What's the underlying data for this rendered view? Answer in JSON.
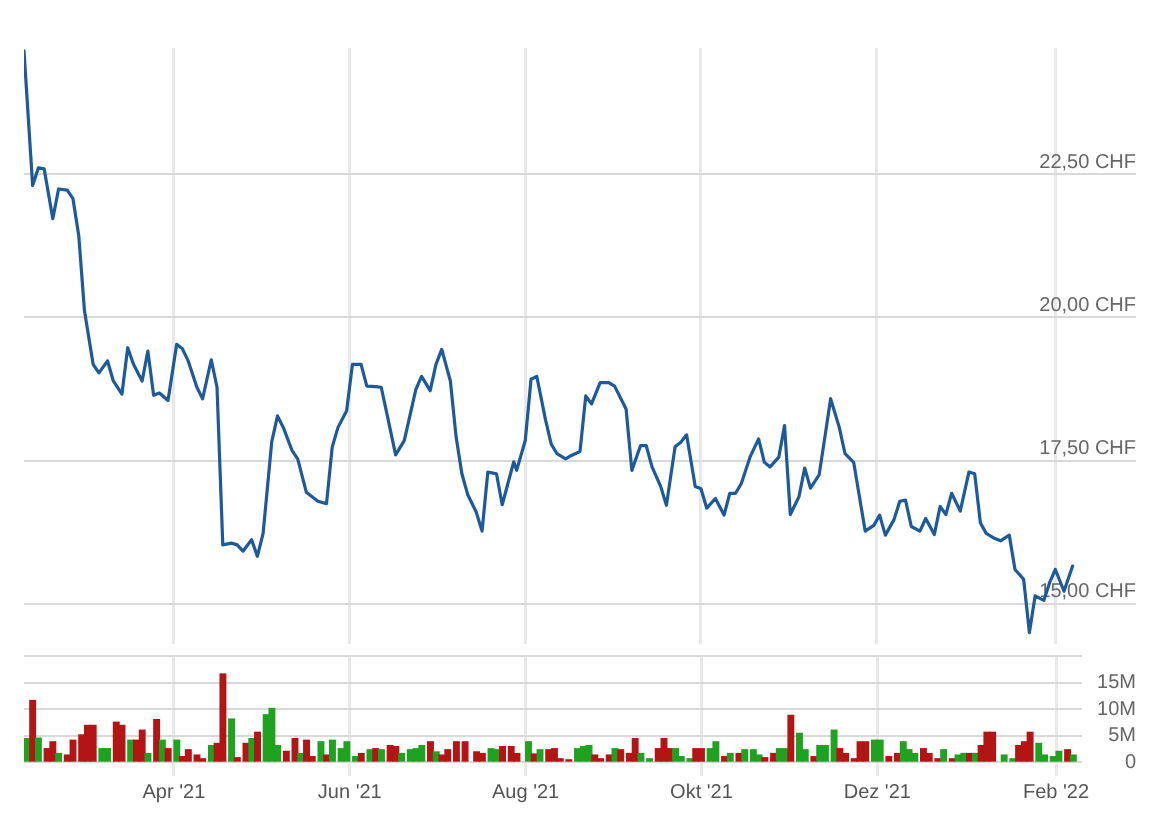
{
  "chart_data": [
    {
      "type": "line",
      "color": "#1d5a9c",
      "marker": "none",
      "grid": true,
      "tick_labels": "y",
      "xlim": [
        "2021-02-08",
        "2022-03-01"
      ],
      "xticks": [
        {
          "value": "2021-04-01",
          "label": "Apr '21"
        },
        {
          "value": "2021-06-01",
          "label": "Jun '21"
        },
        {
          "value": "2021-08-01",
          "label": "Aug '21"
        },
        {
          "value": "2021-10-01",
          "label": "Okt '21"
        },
        {
          "value": "2021-12-01",
          "label": "Dez '21"
        },
        {
          "value": "2022-02-01",
          "label": "Feb '22"
        }
      ],
      "ylim": [
        14.3,
        24.7
      ],
      "yticks": [
        {
          "value": 15,
          "label": "15,00 CHF"
        },
        {
          "value": 17.5,
          "label": "17,50 CHF"
        },
        {
          "value": 20,
          "label": "20,00 CHF"
        },
        {
          "value": 22.5,
          "label": "22,50 CHF"
        }
      ],
      "x": [
        "2021-02-08",
        "2021-02-11",
        "2021-02-13",
        "2021-02-15",
        "2021-02-18",
        "2021-02-20",
        "2021-02-23",
        "2021-02-25",
        "2021-02-27",
        "2021-03-01",
        "2021-03-04",
        "2021-03-06",
        "2021-03-09",
        "2021-03-11",
        "2021-03-14",
        "2021-03-16",
        "2021-03-18",
        "2021-03-21",
        "2021-03-23",
        "2021-03-25",
        "2021-03-27",
        "2021-03-30",
        "2021-04-02",
        "2021-04-04",
        "2021-04-06",
        "2021-04-09",
        "2021-04-11",
        "2021-04-14",
        "2021-04-16",
        "2021-04-18",
        "2021-04-21",
        "2021-04-23",
        "2021-04-25",
        "2021-04-28",
        "2021-04-30",
        "2021-05-02",
        "2021-05-05",
        "2021-05-07",
        "2021-05-09",
        "2021-05-12",
        "2021-05-14",
        "2021-05-17",
        "2021-05-19",
        "2021-05-21",
        "2021-05-24",
        "2021-05-26",
        "2021-05-28",
        "2021-05-31",
        "2021-06-02",
        "2021-06-05",
        "2021-06-07",
        "2021-06-10",
        "2021-06-12",
        "2021-06-14",
        "2021-06-17",
        "2021-06-20",
        "2021-06-24",
        "2021-06-26",
        "2021-06-29",
        "2021-07-01",
        "2021-07-03",
        "2021-07-06",
        "2021-07-08",
        "2021-07-10",
        "2021-07-12",
        "2021-07-15",
        "2021-07-17",
        "2021-07-19",
        "2021-07-22",
        "2021-07-24",
        "2021-07-28",
        "2021-07-29",
        "2021-08-01",
        "2021-08-03",
        "2021-08-05",
        "2021-08-08",
        "2021-08-10",
        "2021-08-12",
        "2021-08-15",
        "2021-08-17",
        "2021-08-20",
        "2021-08-22",
        "2021-08-24",
        "2021-08-27",
        "2021-08-30",
        "2021-09-01",
        "2021-09-05",
        "2021-09-07",
        "2021-09-10",
        "2021-09-12",
        "2021-09-14",
        "2021-09-17",
        "2021-09-19",
        "2021-09-22",
        "2021-09-24",
        "2021-09-26",
        "2021-09-29",
        "2021-10-01",
        "2021-10-03",
        "2021-10-06",
        "2021-10-09",
        "2021-10-11",
        "2021-10-13",
        "2021-10-15",
        "2021-10-18",
        "2021-10-21",
        "2021-10-23",
        "2021-10-25",
        "2021-10-28",
        "2021-10-30",
        "2021-11-01",
        "2021-11-04",
        "2021-11-06",
        "2021-11-08",
        "2021-11-11",
        "2021-11-13",
        "2021-11-15",
        "2021-11-18",
        "2021-11-20",
        "2021-11-23",
        "2021-11-25",
        "2021-11-27",
        "2021-11-30",
        "2021-12-02",
        "2021-12-04",
        "2021-12-07",
        "2021-12-09",
        "2021-12-11",
        "2021-12-13",
        "2021-12-16",
        "2021-12-18",
        "2021-12-21",
        "2021-12-23",
        "2021-12-25",
        "2021-12-27",
        "2021-12-30",
        "2022-01-02",
        "2022-01-04",
        "2022-01-06",
        "2022-01-08",
        "2022-01-11",
        "2022-01-13",
        "2022-01-16",
        "2022-01-18",
        "2022-01-21",
        "2022-01-23",
        "2022-01-25",
        "2022-01-28",
        "2022-01-30",
        "2022-02-01",
        "2022-02-04",
        "2022-02-07"
      ],
      "values": [
        24.65,
        22.3,
        22.61,
        22.59,
        21.72,
        22.24,
        22.22,
        22.07,
        21.43,
        20.11,
        19.18,
        19.03,
        19.24,
        18.89,
        18.66,
        19.47,
        19.18,
        18.89,
        19.41,
        18.64,
        18.68,
        18.55,
        19.53,
        19.45,
        19.24,
        18.78,
        18.58,
        19.26,
        18.78,
        16.03,
        16.06,
        16.03,
        15.92,
        16.12,
        15.83,
        16.23,
        17.83,
        18.28,
        18.08,
        17.68,
        17.53,
        16.95,
        16.87,
        16.79,
        16.75,
        17.74,
        18.08,
        18.37,
        19.18,
        19.18,
        18.8,
        18.79,
        18.78,
        18.31,
        17.6,
        17.85,
        18.74,
        18.97,
        18.72,
        19.18,
        19.44,
        18.89,
        17.91,
        17.27,
        16.91,
        16.6,
        16.27,
        17.3,
        17.27,
        16.73,
        17.48,
        17.33,
        17.85,
        18.92,
        18.97,
        18.22,
        17.79,
        17.62,
        17.53,
        17.59,
        17.66,
        18.63,
        18.49,
        18.86,
        18.86,
        18.8,
        18.4,
        17.33,
        17.76,
        17.76,
        17.39,
        17.05,
        16.72,
        17.74,
        17.82,
        17.95,
        17.05,
        17.01,
        16.67,
        16.84,
        16.55,
        16.93,
        16.93,
        17.1,
        17.56,
        17.88,
        17.47,
        17.39,
        17.56,
        18.11,
        16.56,
        16.87,
        17.37,
        17.02,
        17.25,
        17.91,
        18.58,
        18.08,
        17.62,
        17.47,
        16.87,
        16.27,
        16.37,
        16.55,
        16.2,
        16.47,
        16.79,
        16.81,
        16.35,
        16.27,
        16.49,
        16.21,
        16.7,
        16.56,
        16.93,
        16.62,
        17.3,
        17.27,
        16.41,
        16.23,
        16.14,
        16.1,
        16.2,
        15.6,
        15.43,
        14.5,
        15.14,
        15.06,
        15.37,
        15.6,
        15.22,
        15.66
      ]
    },
    {
      "type": "bar",
      "grid": true,
      "xlim": [
        "2021-02-08",
        "2022-02-10"
      ],
      "xticks": [
        {
          "value": "2021-04-01",
          "label": "Apr '21"
        },
        {
          "value": "2021-06-01",
          "label": "Jun '21"
        },
        {
          "value": "2021-08-01",
          "label": "Aug '21"
        },
        {
          "value": "2021-10-01",
          "label": "Okt '21"
        },
        {
          "value": "2021-12-01",
          "label": "Dez '21"
        },
        {
          "value": "2022-02-01",
          "label": "Feb '22"
        }
      ],
      "ylim": [
        0,
        20
      ],
      "yticks": [
        0,
        {
          "value": 5,
          "label": "5M"
        },
        {
          "value": 10,
          "label": "10M"
        },
        {
          "value": 15,
          "label": "15M"
        },
        {
          "value": 20,
          "label": null
        }
      ],
      "x": [
        "2021-02-09",
        "2021-02-11",
        "2021-02-13",
        "2021-02-16",
        "2021-02-18",
        "2021-02-20",
        "2021-02-23",
        "2021-02-25",
        "2021-02-28",
        "2021-03-02",
        "2021-03-04",
        "2021-03-07",
        "2021-03-09",
        "2021-03-12",
        "2021-03-14",
        "2021-03-17",
        "2021-03-19",
        "2021-03-21",
        "2021-03-23",
        "2021-03-26",
        "2021-03-28",
        "2021-03-30",
        "2021-04-02",
        "2021-04-04",
        "2021-04-06",
        "2021-04-09",
        "2021-04-11",
        "2021-04-14",
        "2021-04-16",
        "2021-04-18",
        "2021-04-21",
        "2021-04-23",
        "2021-04-26",
        "2021-04-28",
        "2021-04-30",
        "2021-05-03",
        "2021-05-05",
        "2021-05-07",
        "2021-05-10",
        "2021-05-13",
        "2021-05-15",
        "2021-05-17",
        "2021-05-19",
        "2021-05-22",
        "2021-05-24",
        "2021-05-26",
        "2021-05-29",
        "2021-05-31",
        "2021-06-03",
        "2021-06-05",
        "2021-06-08",
        "2021-06-10",
        "2021-06-12",
        "2021-06-15",
        "2021-06-17",
        "2021-06-19",
        "2021-06-22",
        "2021-06-24",
        "2021-06-26",
        "2021-06-29",
        "2021-07-01",
        "2021-07-03",
        "2021-07-05",
        "2021-07-08",
        "2021-07-11",
        "2021-07-15",
        "2021-07-17",
        "2021-07-20",
        "2021-07-22",
        "2021-07-24",
        "2021-07-27",
        "2021-07-29",
        "2021-08-02",
        "2021-08-04",
        "2021-08-06",
        "2021-08-09",
        "2021-08-11",
        "2021-08-13",
        "2021-08-16",
        "2021-08-19",
        "2021-08-21",
        "2021-08-23",
        "2021-08-25",
        "2021-08-27",
        "2021-08-30",
        "2021-09-01",
        "2021-09-03",
        "2021-09-06",
        "2021-09-08",
        "2021-09-10",
        "2021-09-13",
        "2021-09-16",
        "2021-09-18",
        "2021-09-20",
        "2021-09-22",
        "2021-09-24",
        "2021-09-27",
        "2021-09-29",
        "2021-10-01",
        "2021-10-04",
        "2021-10-06",
        "2021-10-09",
        "2021-10-11",
        "2021-10-14",
        "2021-10-16",
        "2021-10-19",
        "2021-10-21",
        "2021-10-23",
        "2021-10-26",
        "2021-10-28",
        "2021-10-30",
        "2021-11-01",
        "2021-11-04",
        "2021-11-06",
        "2021-11-09",
        "2021-11-11",
        "2021-11-13",
        "2021-11-16",
        "2021-11-18",
        "2021-11-20",
        "2021-11-23",
        "2021-11-25",
        "2021-11-27",
        "2021-11-30",
        "2021-12-02",
        "2021-12-05",
        "2021-12-08",
        "2021-12-10",
        "2021-12-12",
        "2021-12-14",
        "2021-12-17",
        "2021-12-19",
        "2021-12-22",
        "2021-12-24",
        "2021-12-27",
        "2021-12-29",
        "2021-12-31",
        "2022-01-02",
        "2022-01-04",
        "2022-01-06",
        "2022-01-08",
        "2022-01-10",
        "2022-01-14",
        "2022-01-17",
        "2022-01-19",
        "2022-01-21",
        "2022-01-23",
        "2022-01-26",
        "2022-01-28",
        "2022-01-31",
        "2022-02-02",
        "2022-02-05",
        "2022-02-07"
      ],
      "values": [
        4.4,
        11.6,
        4.5,
        2.5,
        3.8,
        1.6,
        1.3,
        4.1,
        5.1,
        6.9,
        6.9,
        2.5,
        2.5,
        7.5,
        6.9,
        4.1,
        4.1,
        6.0,
        1.6,
        8.0,
        4.1,
        2.5,
        4.1,
        1.0,
        2.3,
        1.3,
        0.6,
        3.1,
        3.5,
        16.6,
        8.1,
        0.8,
        3.5,
        4.4,
        5.6,
        8.9,
        10.1,
        3.1,
        2.0,
        4.4,
        1.6,
        4.1,
        1.0,
        3.8,
        1.3,
        4.1,
        2.5,
        3.8,
        1.0,
        1.6,
        2.3,
        2.5,
        2.3,
        3.1,
        2.9,
        1.6,
        2.3,
        2.5,
        3.1,
        3.8,
        1.9,
        1.3,
        2.3,
        3.8,
        3.8,
        1.9,
        1.6,
        2.5,
        2.3,
        2.9,
        2.9,
        1.6,
        3.8,
        1.5,
        2.3,
        2.3,
        2.5,
        0.6,
        0.4,
        2.5,
        2.9,
        3.1,
        1.3,
        0.6,
        1.3,
        2.5,
        2.3,
        1.6,
        4.4,
        1.6,
        0.6,
        2.5,
        4.4,
        2.5,
        2.5,
        1.0,
        0.6,
        2.5,
        2.5,
        2.5,
        3.8,
        1.0,
        1.6,
        1.6,
        2.3,
        2.3,
        1.3,
        0.8,
        1.6,
        2.5,
        2.5,
        8.8,
        5.4,
        2.3,
        1.0,
        3.1,
        3.1,
        6.0,
        2.5,
        1.6,
        0.6,
        3.8,
        3.8,
        4.1,
        4.1,
        1.0,
        1.6,
        3.8,
        2.3,
        1.6,
        2.5,
        1.6,
        0.6,
        2.3,
        0.6,
        1.3,
        1.6,
        1.6,
        1.6,
        3.1,
        5.6,
        5.6,
        1.3,
        0.6,
        3.1,
        3.8,
        5.6,
        3.5,
        1.3,
        1.0,
        2.0,
        2.3,
        1.3
      ],
      "colors": [
        "#1fa21f",
        "#b31414",
        "#1fa21f",
        "#b31414",
        "#b31414",
        "#1fa21f",
        "#b31414",
        "#b31414",
        "#b31414",
        "#b31414",
        "#b31414",
        "#1fa21f",
        "#1fa21f",
        "#b31414",
        "#b31414",
        "#1fa21f",
        "#b31414",
        "#b31414",
        "#1fa21f",
        "#b31414",
        "#1fa21f",
        "#b31414",
        "#1fa21f",
        "#b31414",
        "#b31414",
        "#b31414",
        "#b31414",
        "#1fa21f",
        "#b31414",
        "#b31414",
        "#1fa21f",
        "#b31414",
        "#b31414",
        "#1fa21f",
        "#b31414",
        "#1fa21f",
        "#1fa21f",
        "#1fa21f",
        "#b31414",
        "#b31414",
        "#1fa21f",
        "#b31414",
        "#b31414",
        "#1fa21f",
        "#b31414",
        "#1fa21f",
        "#1fa21f",
        "#1fa21f",
        "#1fa21f",
        "#b31414",
        "#1fa21f",
        "#b31414",
        "#1fa21f",
        "#b31414",
        "#b31414",
        "#1fa21f",
        "#1fa21f",
        "#1fa21f",
        "#1fa21f",
        "#b31414",
        "#1fa21f",
        "#b31414",
        "#b31414",
        "#b31414",
        "#b31414",
        "#b31414",
        "#b31414",
        "#1fa21f",
        "#1fa21f",
        "#b31414",
        "#b31414",
        "#b31414",
        "#1fa21f",
        "#b31414",
        "#1fa21f",
        "#b31414",
        "#b31414",
        "#b31414",
        "#b31414",
        "#1fa21f",
        "#1fa21f",
        "#1fa21f",
        "#b31414",
        "#b31414",
        "#b31414",
        "#1fa21f",
        "#b31414",
        "#b31414",
        "#b31414",
        "#1fa21f",
        "#1fa21f",
        "#b31414",
        "#b31414",
        "#b31414",
        "#1fa21f",
        "#1fa21f",
        "#1fa21f",
        "#b31414",
        "#b31414",
        "#1fa21f",
        "#1fa21f",
        "#b31414",
        "#1fa21f",
        "#b31414",
        "#1fa21f",
        "#1fa21f",
        "#1fa21f",
        "#b31414",
        "#b31414",
        "#1fa21f",
        "#1fa21f",
        "#b31414",
        "#1fa21f",
        "#1fa21f",
        "#b31414",
        "#1fa21f",
        "#1fa21f",
        "#1fa21f",
        "#b31414",
        "#b31414",
        "#b31414",
        "#b31414",
        "#b31414",
        "#1fa21f",
        "#1fa21f",
        "#b31414",
        "#b31414",
        "#1fa21f",
        "#1fa21f",
        "#1fa21f",
        "#b31414",
        "#b31414",
        "#b31414",
        "#1fa21f",
        "#b31414",
        "#1fa21f",
        "#1fa21f",
        "#b31414",
        "#1fa21f",
        "#b31414",
        "#b31414",
        "#b31414",
        "#1fa21f",
        "#1fa21f",
        "#b31414",
        "#b31414",
        "#b31414",
        "#1fa21f",
        "#1fa21f",
        "#1fa21f",
        "#1fa21f",
        "#b31414",
        "#1fa21f"
      ]
    }
  ]
}
